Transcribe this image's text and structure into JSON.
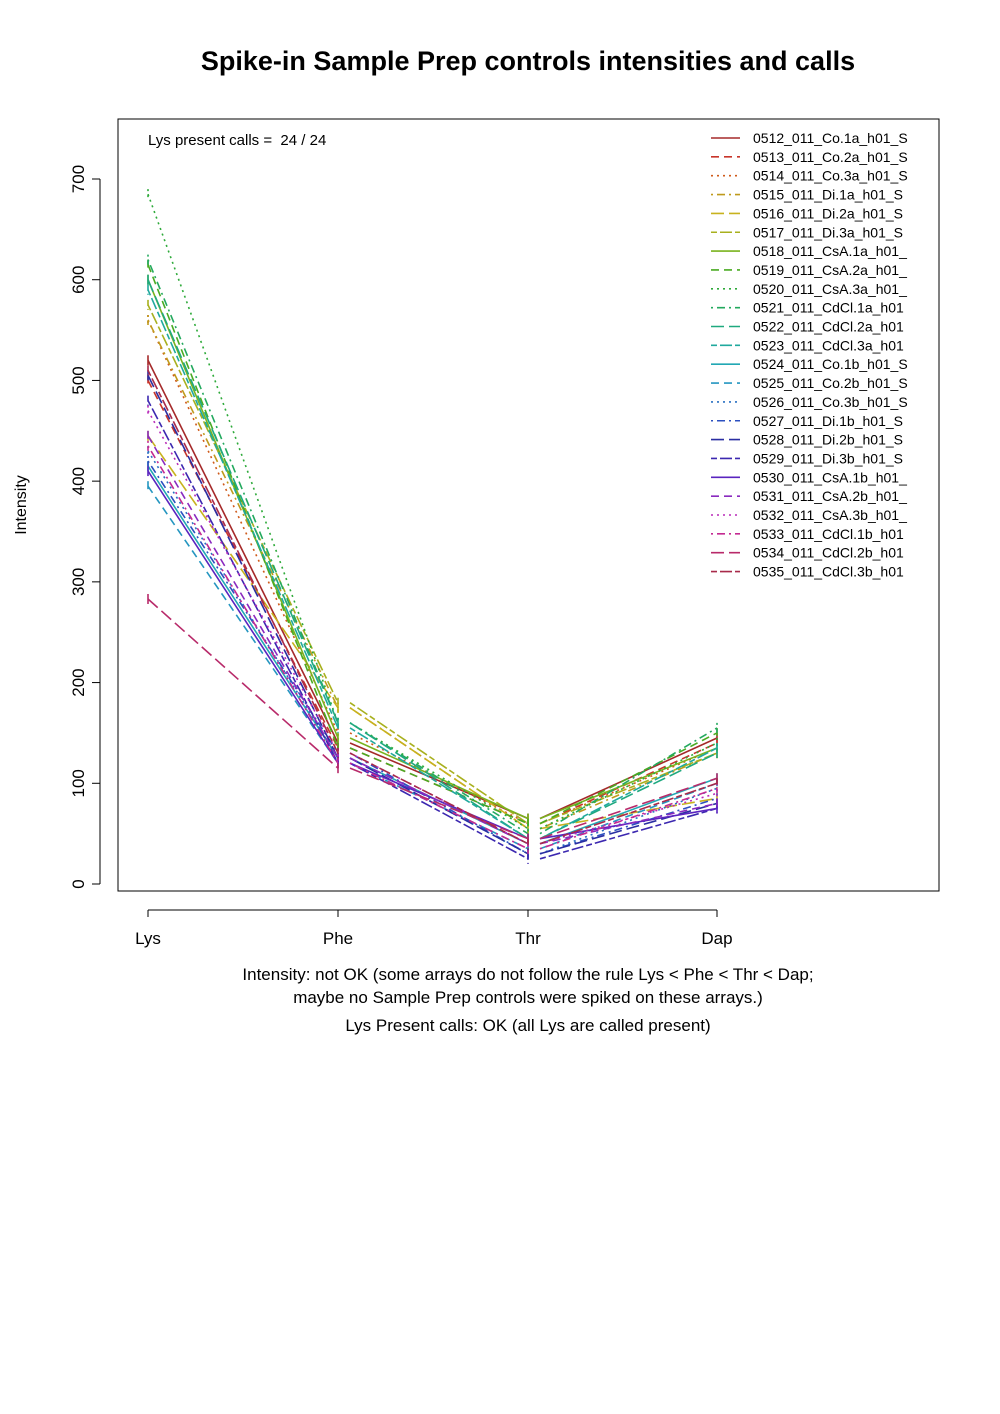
{
  "chart_data": {
    "type": "line",
    "title": "Spike-in Sample Prep controls intensities and calls",
    "ylabel": "Intensity",
    "xlabel": "",
    "categories": [
      "Lys",
      "Phe",
      "Thr",
      "Dap"
    ],
    "y_ticks": [
      "0",
      "100",
      "200",
      "300",
      "400",
      "500",
      "600",
      "700"
    ],
    "ylim": [
      0,
      700
    ],
    "grid": false,
    "legend_position": "top-right",
    "annotation": "Lys present calls =  24 / 24",
    "captions": [
      "Intensity: not OK (some arrays do not follow the rule Lys < Phe < Thr < Dap;",
      "maybe no Sample Prep controls were spiked on these arrays.)",
      "Lys Present calls: OK (all Lys are called present)"
    ],
    "series": [
      {
        "name": "0512_011_Co.1a_h01_S",
        "color": "#a52a2a",
        "dash": "solid",
        "values": [
          520,
          140,
          65,
          145
        ]
      },
      {
        "name": "0513_011_Co.2a_h01_S",
        "color": "#c8352a",
        "dash": "dashed",
        "values": [
          500,
          135,
          60,
          140
        ]
      },
      {
        "name": "0514_011_Co.3a_h01_S",
        "color": "#cf5a1a",
        "dash": "dotted",
        "values": [
          560,
          150,
          60,
          135
        ]
      },
      {
        "name": "0515_011_Di.1a_h01_S",
        "color": "#bf9a1c",
        "dash": "dotdash",
        "values": [
          560,
          175,
          55,
          130
        ]
      },
      {
        "name": "0516_011_Di.2a_h01_S",
        "color": "#c8b21e",
        "dash": "longdash",
        "values": [
          445,
          175,
          55,
          85
        ]
      },
      {
        "name": "0517_011_Di.3a_h01_S",
        "color": "#a8b01e",
        "dash": "twodash",
        "values": [
          575,
          180,
          60,
          130
        ]
      },
      {
        "name": "0518_011_CsA.1a_h01_",
        "color": "#7ab31e",
        "dash": "solid",
        "values": [
          600,
          145,
          65,
          135
        ]
      },
      {
        "name": "0519_011_CsA.2a_h01_",
        "color": "#4aab22",
        "dash": "dashed",
        "values": [
          615,
          135,
          60,
          150
        ]
      },
      {
        "name": "0520_011_CsA.3a_h01_",
        "color": "#2eaa3a",
        "dash": "dotted",
        "values": [
          685,
          160,
          55,
          140
        ]
      },
      {
        "name": "0521_011_CdCl.1a_h01",
        "color": "#23a95e",
        "dash": "dotdash",
        "values": [
          620,
          160,
          50,
          155
        ]
      },
      {
        "name": "0522_011_CdCl.2a_h01",
        "color": "#1fa97f",
        "dash": "longdash",
        "values": [
          600,
          160,
          45,
          130
        ]
      },
      {
        "name": "0523_011_CdCl.3a_h01",
        "color": "#20a99e",
        "dash": "twodash",
        "values": [
          590,
          155,
          45,
          135
        ]
      },
      {
        "name": "0524_011_Co.1b_h01_S",
        "color": "#22a8b4",
        "dash": "solid",
        "values": [
          415,
          125,
          40,
          105
        ]
      },
      {
        "name": "0525_011_Co.2b_h01_S",
        "color": "#2596c0",
        "dash": "dashed",
        "values": [
          395,
          120,
          35,
          100
        ]
      },
      {
        "name": "0526_011_Co.3b_h01_S",
        "color": "#2a70c2",
        "dash": "dotted",
        "values": [
          430,
          125,
          30,
          95
        ]
      },
      {
        "name": "0527_011_Di.1b_h01_S",
        "color": "#2c50c0",
        "dash": "dotdash",
        "values": [
          420,
          130,
          30,
          85
        ]
      },
      {
        "name": "0528_011_Di.2b_h01_S",
        "color": "#2a2ea2",
        "dash": "longdash",
        "values": [
          505,
          125,
          30,
          80
        ]
      },
      {
        "name": "0529_011_Di.3b_h01_S",
        "color": "#3c28b0",
        "dash": "twodash",
        "values": [
          480,
          120,
          25,
          75
        ]
      },
      {
        "name": "0530_011_CsA.1b_h01_",
        "color": "#5a24bf",
        "dash": "solid",
        "values": [
          410,
          120,
          45,
          75
        ]
      },
      {
        "name": "0531_011_CsA.2b_h01_",
        "color": "#8a2abf",
        "dash": "dashed",
        "values": [
          445,
          125,
          40,
          80
        ]
      },
      {
        "name": "0532_011_CsA.3b_h01_",
        "color": "#b82ab8",
        "dash": "dotted",
        "values": [
          470,
          130,
          40,
          90
        ]
      },
      {
        "name": "0533_011_CdCl.1b_h01",
        "color": "#c42a92",
        "dash": "dotdash",
        "values": [
          435,
          120,
          35,
          95
        ]
      },
      {
        "name": "0534_011_CdCl.2b_h01",
        "color": "#b82a6a",
        "dash": "longdash",
        "values": [
          283,
          115,
          45,
          105
        ]
      },
      {
        "name": "0535_011_CdCl.3b_h01",
        "color": "#a82a4a",
        "dash": "twodash",
        "values": [
          510,
          130,
          40,
          100
        ]
      }
    ]
  }
}
